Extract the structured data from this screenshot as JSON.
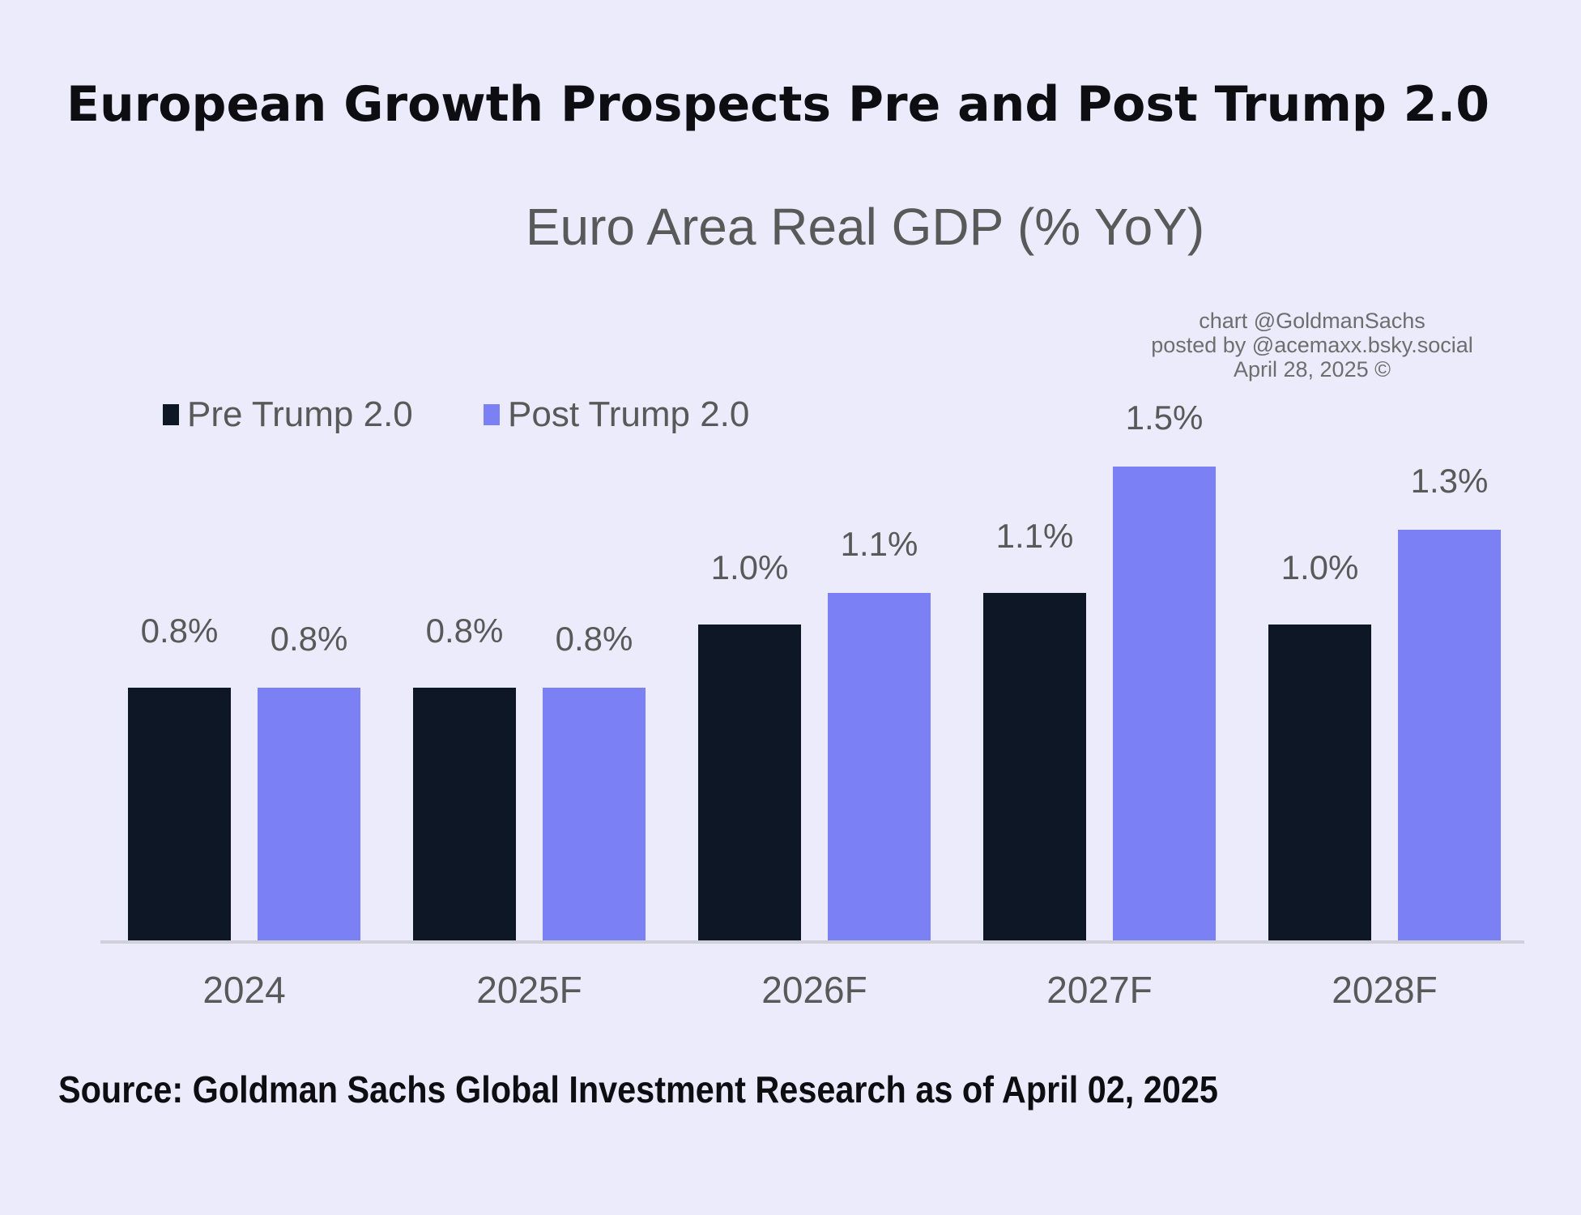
{
  "headline": "European Growth Prospects Pre and Post Trump 2.0",
  "source": "Source: Goldman Sachs Global Investment Research as of April 02, 2025",
  "credit": {
    "line1": "chart @GoldmanSachs",
    "line2": "posted by @acemaxx.bsky.social",
    "line3": "April 28, 2025 ©"
  },
  "colors": {
    "background": "#ebebfb",
    "pre": "#0e1726",
    "post": "#7b80f5",
    "axis": "#d0d0d8"
  },
  "chart_data": {
    "type": "bar",
    "title": "Euro Area Real GDP (% YoY)",
    "xlabel": "",
    "ylabel": "",
    "ylim": [
      0,
      1.5
    ],
    "grid": false,
    "legend_position": "top-left",
    "categories": [
      "2024",
      "2025F",
      "2026F",
      "2027F",
      "2028F"
    ],
    "series": [
      {
        "name": "Pre Trump 2.0",
        "values": [
          0.8,
          0.8,
          1.0,
          1.1,
          1.0
        ],
        "labels": [
          "0.8%",
          "0.8%",
          "1.0%",
          "1.1%",
          "1.0%"
        ]
      },
      {
        "name": "Post Trump 2.0",
        "values": [
          0.8,
          0.8,
          1.1,
          1.5,
          1.3
        ],
        "labels": [
          "0.8%",
          "0.8%",
          "1.1%",
          "1.5%",
          "1.3%"
        ]
      }
    ]
  }
}
